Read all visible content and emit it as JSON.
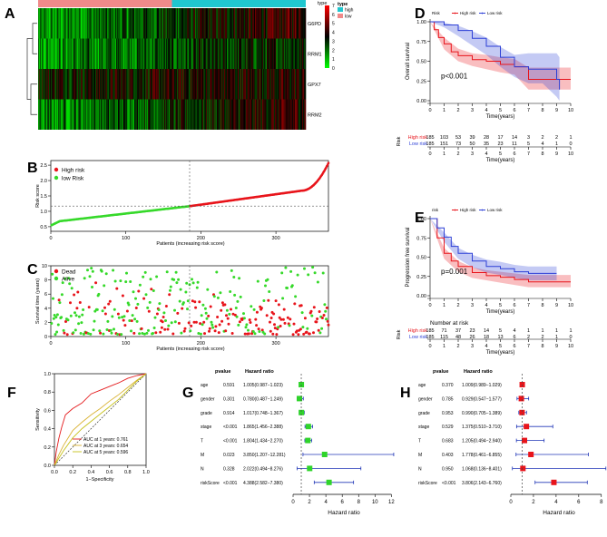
{
  "panels": {
    "A": {
      "letter": "A",
      "genes": [
        "G6PD",
        "RRM1",
        "GPX7",
        "RRM2"
      ],
      "legend_title": "type",
      "legend_groups": [
        {
          "label": "high",
          "color": "#20c7cf"
        },
        {
          "label": "low",
          "color": "#f08a8a"
        }
      ],
      "scale_ticks": [
        "7",
        "6",
        "5",
        "4",
        "3",
        "2",
        "1",
        "0"
      ],
      "scale_min": 0,
      "scale_max": 7,
      "low_count": 185,
      "high_count": 185
    },
    "B": {
      "letter": "B",
      "ylabel": "Risk score",
      "xlabel": "Patients (increasing risk score)",
      "legend": [
        {
          "label": "High risk",
          "color": "#e8141b"
        },
        {
          "label": "low Risk",
          "color": "#36d92a"
        }
      ],
      "xticks": [
        "0",
        "100",
        "200",
        "300"
      ],
      "yticks": [
        "0.5",
        "1.0",
        "1.5",
        "2.0",
        "2.5"
      ],
      "xlim": [
        0,
        370
      ],
      "ylim": [
        0.35,
        2.65
      ],
      "cutoff_index": 185,
      "cutoff_score": 1.17
    },
    "C": {
      "letter": "C",
      "ylabel": "Survival time (years)",
      "xlabel": "Patients (increasing risk score)",
      "legend": [
        {
          "label": "Dead",
          "color": "#e8141b"
        },
        {
          "label": "Alive",
          "color": "#36d92a"
        }
      ],
      "xticks": [
        "0",
        "100",
        "200",
        "300"
      ],
      "yticks": [
        "0",
        "2",
        "4",
        "6",
        "8",
        "10"
      ],
      "xlim": [
        0,
        370
      ],
      "ylim": [
        0,
        10
      ],
      "cutoff_index": 185
    },
    "D": {
      "letter": "D",
      "legend_title": "Risk",
      "legend": [
        {
          "label": "High risk",
          "color": "#e8141b"
        },
        {
          "label": "Low risk",
          "color": "#2c3fd6"
        }
      ],
      "ylabel": "Overall survival",
      "xlabel": "Time(years)",
      "pvalue": "p<0.001",
      "xticks": [
        "0",
        "1",
        "2",
        "3",
        "4",
        "5",
        "6",
        "7",
        "8",
        "9",
        "10"
      ],
      "yticks": [
        "0.00",
        "0.25",
        "0.50",
        "0.75",
        "1.00"
      ],
      "risk_label": "Risk",
      "risk_rows": [
        {
          "name": "High risk",
          "color": "#e8141b",
          "values": [
            "185",
            "103",
            "53",
            "39",
            "28",
            "17",
            "14",
            "3",
            "2",
            "2",
            "1"
          ]
        },
        {
          "name": "Low risk",
          "color": "#2c3fd6",
          "values": [
            "185",
            "151",
            "73",
            "50",
            "35",
            "23",
            "11",
            "5",
            "4",
            "1",
            "0"
          ]
        }
      ],
      "risk_xticks": [
        "0",
        "1",
        "2",
        "3",
        "4",
        "5",
        "6",
        "7",
        "8",
        "9",
        "10"
      ]
    },
    "E": {
      "letter": "E",
      "legend_title": "risk",
      "legend": [
        {
          "label": "High risk",
          "color": "#e8141b"
        },
        {
          "label": "Low risk",
          "color": "#2c3fd6"
        }
      ],
      "ylabel": "Progression free survival",
      "xlabel": "Time(years)",
      "pvalue": "p=0.001",
      "xticks": [
        "0",
        "1",
        "2",
        "3",
        "4",
        "5",
        "6",
        "7",
        "8",
        "9",
        "10"
      ],
      "yticks": [
        "0.00",
        "0.25",
        "0.50",
        "0.75",
        "1.00"
      ],
      "risk_title": "Number at risk",
      "risk_label": "Risk",
      "risk_rows": [
        {
          "name": "High risk",
          "color": "#e8141b",
          "values": [
            "185",
            "71",
            "37",
            "23",
            "14",
            "5",
            "4",
            "1",
            "1",
            "1",
            "1"
          ]
        },
        {
          "name": "Low risk",
          "color": "#2c3fd6",
          "values": [
            "185",
            "115",
            "48",
            "26",
            "18",
            "13",
            "6",
            "2",
            "2",
            "1",
            "0"
          ]
        }
      ],
      "risk_xticks": [
        "0",
        "1",
        "2",
        "3",
        "4",
        "5",
        "6",
        "7",
        "8",
        "9",
        "10"
      ]
    },
    "F": {
      "letter": "F",
      "ylabel": "Sensitivity",
      "xlabel": "1−Specificity",
      "xticks": [
        "0.0",
        "0.2",
        "0.4",
        "0.6",
        "0.8",
        "1.0"
      ],
      "yticks": [
        "0.0",
        "0.2",
        "0.4",
        "0.6",
        "0.8",
        "1.0"
      ],
      "legend": [
        {
          "label": "AUC at 1 years: 0.761",
          "color": "#e41a1c"
        },
        {
          "label": "AUC at 3 years: 0.654",
          "color": "#d9b233"
        },
        {
          "label": "AUC at 5 years: 0.596",
          "color": "#c6c11b"
        }
      ]
    },
    "G": {
      "letter": "G",
      "col_pvalue": "pvalue",
      "col_hr": "Hazard ratio",
      "xlabel": "Hazard ratio",
      "xticks": [
        "0",
        "2",
        "4",
        "6",
        "8",
        "10",
        "12"
      ],
      "xlim": [
        0,
        12.4
      ],
      "marker_color": "#2fd42a",
      "rows": [
        {
          "name": "age",
          "p": "0.591",
          "hr_text": "1.005(0.987−1.023)",
          "hr": 1.005,
          "lo": 0.987,
          "hi": 1.023
        },
        {
          "name": "gender",
          "p": "0.301",
          "hr_text": "0.780(0.487−1.249)",
          "hr": 0.78,
          "lo": 0.487,
          "hi": 1.249
        },
        {
          "name": "grade",
          "p": "0.914",
          "hr_text": "1.017(0.748−1.367)",
          "hr": 1.017,
          "lo": 0.748,
          "hi": 1.367
        },
        {
          "name": "stage",
          "p": "<0.001",
          "hr_text": "1.865(1.456−2.388)",
          "hr": 1.865,
          "lo": 1.456,
          "hi": 2.388
        },
        {
          "name": "T",
          "p": "<0.001",
          "hr_text": "1.804(1.434−2.270)",
          "hr": 1.804,
          "lo": 1.434,
          "hi": 2.27
        },
        {
          "name": "M",
          "p": "0.023",
          "hr_text": "3.850(1.207−12.281)",
          "hr": 3.85,
          "lo": 1.207,
          "hi": 12.281
        },
        {
          "name": "N",
          "p": "0.328",
          "hr_text": "2.022(0.494−8.276)",
          "hr": 2.022,
          "lo": 0.494,
          "hi": 8.276
        },
        {
          "name": "riskScore",
          "p": "<0.001",
          "hr_text": "4.388(2.582−7.380)",
          "hr": 4.388,
          "lo": 2.582,
          "hi": 7.38
        }
      ]
    },
    "H": {
      "letter": "H",
      "col_pvalue": "pvalue",
      "col_hr": "Hazard ratio",
      "xlabel": "Hazard ratio",
      "xticks": [
        "0",
        "2",
        "4",
        "6",
        "8"
      ],
      "xlim": [
        0,
        8.5
      ],
      "marker_color": "#e8141b",
      "rows": [
        {
          "name": "age",
          "p": "0.370",
          "hr_text": "1.009(0.989−1.029)",
          "hr": 1.009,
          "lo": 0.989,
          "hi": 1.029
        },
        {
          "name": "gender",
          "p": "0.785",
          "hr_text": "0.929(0.547−1.577)",
          "hr": 0.929,
          "lo": 0.547,
          "hi": 1.577
        },
        {
          "name": "grade",
          "p": "0.953",
          "hr_text": "0.990(0.705−1.389)",
          "hr": 0.99,
          "lo": 0.705,
          "hi": 1.389
        },
        {
          "name": "stage",
          "p": "0.529",
          "hr_text": "1.375(0.510−3.710)",
          "hr": 1.375,
          "lo": 0.51,
          "hi": 3.71
        },
        {
          "name": "T",
          "p": "0.683",
          "hr_text": "1.205(0.494−2.940)",
          "hr": 1.205,
          "lo": 0.494,
          "hi": 2.94
        },
        {
          "name": "M",
          "p": "0.403",
          "hr_text": "1.778(0.461−6.855)",
          "hr": 1.778,
          "lo": 0.461,
          "hi": 6.855
        },
        {
          "name": "N",
          "p": "0.950",
          "hr_text": "1.068(0.136−8.401)",
          "hr": 1.068,
          "lo": 0.136,
          "hi": 8.401
        },
        {
          "name": "riskScore",
          "p": "<0.001",
          "hr_text": "3.806(2.143−6.760)",
          "hr": 3.806,
          "lo": 2.143,
          "hi": 6.76
        }
      ]
    }
  },
  "chart_data": [
    {
      "type": "heatmap",
      "rows": [
        "G6PD",
        "RRM1",
        "GPX7",
        "RRM2"
      ],
      "groups": [
        {
          "name": "low",
          "count": 185
        },
        {
          "name": "high",
          "count": 185
        }
      ],
      "scale": [
        0,
        7
      ]
    },
    {
      "type": "scatter",
      "xlabel": "Patients (increasing risk score)",
      "ylabel": "Risk score",
      "xlim": [
        0,
        370
      ],
      "ylim": [
        0.35,
        2.65
      ],
      "series": [
        {
          "name": "High risk"
        },
        {
          "name": "low Risk"
        }
      ],
      "cutoff": {
        "x": 185,
        "y": 1.17
      }
    },
    {
      "type": "scatter",
      "xlabel": "Patients (increasing risk score)",
      "ylabel": "Survival time (years)",
      "xlim": [
        0,
        370
      ],
      "ylim": [
        0,
        10
      ],
      "series": [
        {
          "name": "Dead"
        },
        {
          "name": "Alive"
        }
      ]
    },
    {
      "type": "line",
      "xlabel": "Time(years)",
      "ylabel": "Overall survival",
      "xlim": [
        0,
        10
      ],
      "ylim": [
        0,
        1
      ],
      "series": [
        {
          "name": "High risk",
          "x": [
            0,
            0.3,
            0.6,
            1,
            1.5,
            2,
            3,
            4,
            5,
            6,
            7,
            8,
            9,
            10
          ],
          "y": [
            1,
            0.9,
            0.8,
            0.72,
            0.62,
            0.57,
            0.52,
            0.5,
            0.46,
            0.43,
            0.27,
            0.27,
            0.27,
            0.27
          ]
        },
        {
          "name": "Low risk",
          "x": [
            0,
            1,
            2,
            3,
            4,
            5,
            6,
            7,
            8,
            9,
            9.2
          ],
          "y": [
            1,
            0.96,
            0.89,
            0.79,
            0.69,
            0.55,
            0.43,
            0.4,
            0.4,
            0.27,
            0.14
          ]
        }
      ]
    },
    {
      "type": "line",
      "xlabel": "Time(years)",
      "ylabel": "Progression free survival",
      "xlim": [
        0,
        10
      ],
      "ylim": [
        0,
        1
      ],
      "series": [
        {
          "name": "High risk",
          "x": [
            0,
            0.5,
            1,
            1.5,
            2,
            3,
            4,
            5,
            6,
            7,
            8,
            9,
            10
          ],
          "y": [
            1,
            0.75,
            0.55,
            0.45,
            0.38,
            0.3,
            0.26,
            0.24,
            0.21,
            0.18,
            0.18,
            0.18,
            0.18
          ]
        },
        {
          "name": "Low risk",
          "x": [
            0,
            0.5,
            1,
            1.5,
            2,
            3,
            4,
            5,
            6,
            7,
            8,
            9
          ],
          "y": [
            1,
            0.88,
            0.76,
            0.64,
            0.55,
            0.45,
            0.38,
            0.35,
            0.31,
            0.29,
            0.29,
            0.29
          ]
        }
      ]
    },
    {
      "type": "line",
      "xlabel": "1−Specificity",
      "ylabel": "Sensitivity",
      "xlim": [
        0,
        1
      ],
      "ylim": [
        0,
        1
      ],
      "series": [
        {
          "name": "AUC at 1 years: 0.761",
          "x": [
            0,
            0.02,
            0.05,
            0.08,
            0.12,
            0.2,
            0.3,
            0.4,
            0.5,
            0.6,
            0.7,
            0.8,
            0.9,
            1
          ],
          "y": [
            0,
            0.15,
            0.3,
            0.42,
            0.55,
            0.62,
            0.68,
            0.78,
            0.82,
            0.86,
            0.9,
            0.95,
            0.98,
            1
          ]
        },
        {
          "name": "AUC at 3 years: 0.654",
          "x": [
            0,
            0.05,
            0.1,
            0.2,
            0.3,
            0.4,
            0.5,
            0.6,
            0.7,
            0.8,
            0.9,
            1
          ],
          "y": [
            0,
            0.12,
            0.22,
            0.38,
            0.47,
            0.55,
            0.62,
            0.7,
            0.77,
            0.85,
            0.93,
            1
          ]
        },
        {
          "name": "AUC at 5 years: 0.596",
          "x": [
            0,
            0.05,
            0.1,
            0.2,
            0.3,
            0.4,
            0.5,
            0.6,
            0.7,
            0.8,
            0.9,
            1
          ],
          "y": [
            0,
            0.08,
            0.16,
            0.3,
            0.4,
            0.48,
            0.56,
            0.64,
            0.72,
            0.82,
            0.92,
            1
          ]
        }
      ]
    },
    {
      "type": "scatter",
      "xlabel": "Hazard ratio",
      "categories": [
        "age",
        "gender",
        "grade",
        "stage",
        "T",
        "M",
        "N",
        "riskScore"
      ],
      "values": [
        1.005,
        0.78,
        1.017,
        1.865,
        1.804,
        3.85,
        2.022,
        4.388
      ]
    },
    {
      "type": "scatter",
      "xlabel": "Hazard ratio",
      "categories": [
        "age",
        "gender",
        "grade",
        "stage",
        "T",
        "M",
        "N",
        "riskScore"
      ],
      "values": [
        1.009,
        0.929,
        0.99,
        1.375,
        1.205,
        1.778,
        1.068,
        3.806
      ]
    }
  ]
}
